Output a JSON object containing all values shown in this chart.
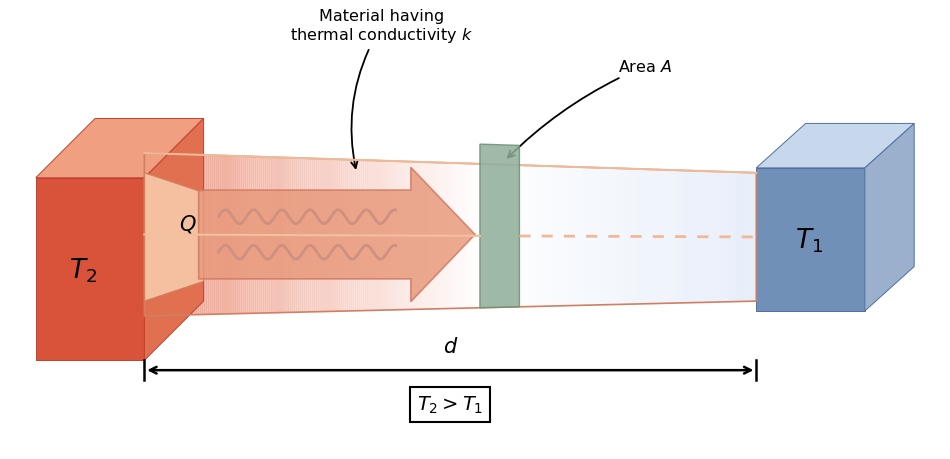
{
  "fig_width": 9.5,
  "fig_height": 4.6,
  "dpi": 100,
  "bg_color": "#ffffff",
  "hot_front_color": "#d9533a",
  "hot_top_color": "#f0a080",
  "hot_right_color": "#e07050",
  "cold_front_color": "#7090b8",
  "cold_top_color": "#c8d8ec",
  "cold_right_color": "#9ab0cc",
  "rod_hot_r": 0.93,
  "rod_hot_g": 0.6,
  "rod_hot_b": 0.52,
  "rod_cold_r": 0.9,
  "rod_cold_g": 0.93,
  "rod_cold_b": 0.98,
  "rod_mid_r": 1.0,
  "rod_mid_g": 1.0,
  "rod_mid_b": 1.0,
  "green_panel_color": "#8fad9a",
  "arrow_fill": "#e8987a",
  "arrow_edge": "#d07860",
  "wavy_color": "#d09080",
  "dashed_color": "#f0b898",
  "outline_color": "#d08060",
  "text_T2": "$T_2$",
  "text_T1": "$T_1$",
  "text_Q": "$Q$",
  "text_d": "$d$",
  "text_condition": "$T_2 > T_1$",
  "text_material": "Material having\nthermal conductivity $k$",
  "text_area": "Area $A$"
}
